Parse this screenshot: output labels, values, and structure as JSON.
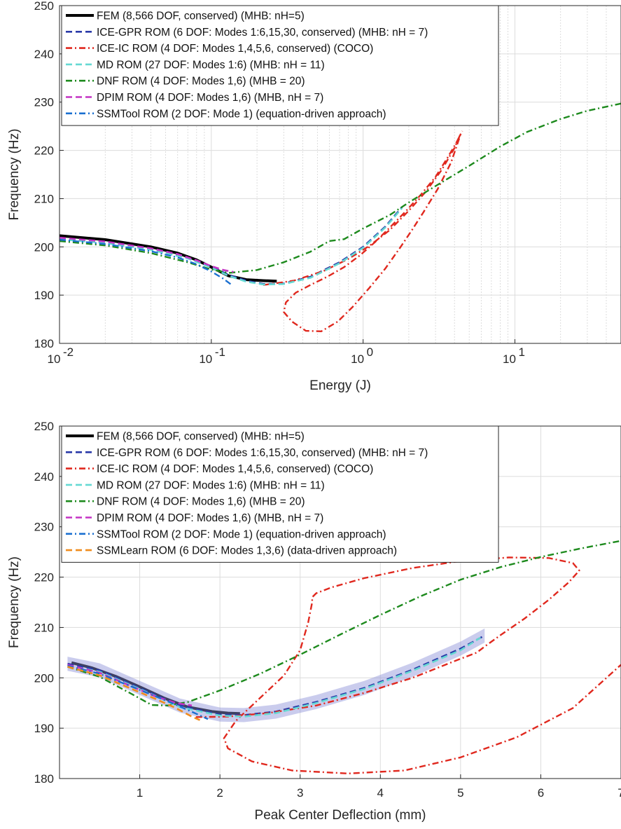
{
  "chart_data": [
    {
      "type": "line",
      "xscale": "log",
      "xlabel": "Energy (J)",
      "ylabel": "Frequency (Hz)",
      "xlim": [
        0.01,
        50
      ],
      "ylim": [
        180,
        250
      ],
      "xticks": [
        0.01,
        0.1,
        1,
        10
      ],
      "xtick_base": [
        "10",
        "10",
        "10",
        "10"
      ],
      "xtick_exp": [
        "-2",
        "-1",
        "0",
        "1"
      ],
      "yticks": [
        "180",
        "190",
        "200",
        "210",
        "220",
        "230",
        "240",
        "250"
      ],
      "grid": true,
      "legend_position": "top-left",
      "legend": [
        "FEM (8,566 DOF, conserved) (MHB: nH=5)",
        "ICE-GPR ROM (6 DOF: Modes 1:6,15,30, conserved) (MHB: nH = 7)",
        "ICE-IC ROM (4 DOF: Modes 1,4,5,6, conserved) (COCO)",
        "MD ROM (27 DOF: Modes 1:6) (MHB: nH = 11)",
        "DNF ROM (4 DOF: Modes 1,6) (MHB = 20)",
        "DPIM ROM (4 DOF:  Modes 1,6) (MHB, nH = 7)",
        "SSMTool ROM (2 DOF: Mode 1) (equation-driven approach)"
      ],
      "series": [
        {
          "name": "FEM (8,566 DOF, conserved) (MHB: nH=5)",
          "color": "#000000",
          "style": "solid",
          "x": [
            0.01,
            0.02,
            0.04,
            0.06,
            0.08,
            0.1,
            0.13,
            0.17,
            0.22,
            0.27
          ],
          "y": [
            202.3,
            201.5,
            200,
            198.7,
            197.3,
            195.8,
            194,
            193.2,
            193,
            192.9
          ]
        },
        {
          "name": "ICE-GPR ROM (6 DOF: Modes 1:6,15,30, conserved) (MHB: nH = 7)",
          "color": "#2a3aa8",
          "style": "dash",
          "x": [
            0.01,
            0.02,
            0.04,
            0.07,
            0.1,
            0.13,
            0.17,
            0.22,
            0.3,
            0.45,
            0.7,
            1.0,
            1.4,
            1.8
          ],
          "y": [
            201.8,
            201,
            199.6,
            197.8,
            195.9,
            194.2,
            193,
            192.3,
            192.4,
            193.8,
            196.8,
            200,
            204.2,
            208.2
          ]
        },
        {
          "name": "ICE-IC ROM (4 DOF: Modes 1,4,5,6, conserved) (COCO)",
          "color": "#e0281e",
          "style": "dashdot",
          "x": [
            0.22,
            0.35,
            0.55,
            0.8,
            1.1,
            1.5,
            2.0,
            2.6,
            3.3,
            4.0,
            4.4,
            4.3,
            3.8,
            3.1,
            2.5,
            2.1,
            1.75,
            1.4,
            1.1,
            0.85,
            0.68,
            0.53,
            0.42,
            0.34,
            0.3,
            0.31,
            0.36,
            0.45,
            0.58,
            0.75,
            0.95,
            1.2,
            1.5,
            1.9,
            2.4,
            3.0,
            3.6,
            4.1,
            4.5
          ],
          "y": [
            192.1,
            193,
            195,
            197.5,
            200.2,
            203.5,
            207.5,
            211.5,
            216,
            220.5,
            223.5,
            222.5,
            217.5,
            212,
            207.2,
            203.5,
            199.8,
            195.5,
            191.5,
            187.5,
            184.5,
            182.5,
            182.6,
            184.5,
            186.5,
            188.5,
            190.5,
            192.1,
            193.8,
            195.8,
            198.2,
            201,
            204,
            207.3,
            210.8,
            214.5,
            218.5,
            221.5,
            224
          ]
        },
        {
          "name": "MD ROM (27 DOF: Modes 1:6) (MHB: nH = 11)",
          "color": "#66d9d3",
          "style": "dash",
          "x": [
            0.01,
            0.02,
            0.04,
            0.07,
            0.1,
            0.13,
            0.17,
            0.22,
            0.3,
            0.45,
            0.7,
            1.0,
            1.4,
            1.8
          ],
          "y": [
            201.6,
            200.8,
            199.4,
            197.6,
            195.7,
            194,
            192.8,
            192.2,
            192.3,
            193.6,
            196.6,
            199.8,
            204,
            208
          ]
        },
        {
          "name": "DNF ROM (4 DOF: Modes 1,6) (MHB = 20)",
          "color": "#1d8a1d",
          "style": "dashdot",
          "x": [
            0.01,
            0.02,
            0.04,
            0.07,
            0.1,
            0.13,
            0.2,
            0.3,
            0.45,
            0.6,
            0.75,
            1.0,
            1.5,
            2.0,
            3.0,
            5.0,
            8.0,
            12,
            20,
            30,
            50
          ],
          "y": [
            201.2,
            200.3,
            198.7,
            196.8,
            195.3,
            194.6,
            195.2,
            196.8,
            199,
            201.2,
            201.6,
            203.8,
            206.6,
            209.2,
            212.6,
            216.8,
            220.8,
            223.8,
            226.5,
            228.2,
            229.7
          ]
        },
        {
          "name": "DPIM ROM (4 DOF:  Modes 1,6) (MHB, nH = 7)",
          "color": "#c433c4",
          "style": "dash",
          "x": [
            0.01,
            0.02,
            0.04,
            0.06,
            0.08,
            0.1,
            0.12,
            0.14
          ],
          "y": [
            201.9,
            201.1,
            199.7,
            198.5,
            197.2,
            196,
            195.2,
            194.8
          ]
        },
        {
          "name": "SSMTool ROM (2 DOF: Mode 1) (equation-driven approach)",
          "color": "#1a6fd0",
          "style": "dashdot",
          "x": [
            0.01,
            0.02,
            0.04,
            0.06,
            0.08,
            0.1,
            0.12,
            0.135
          ],
          "y": [
            201.5,
            200.6,
            199.1,
            197.8,
            196.4,
            194.9,
            193.4,
            192.2
          ]
        }
      ]
    },
    {
      "type": "line",
      "xlabel": "Peak Center Deflection (mm)",
      "ylabel": "Frequency (Hz)",
      "xlim": [
        0,
        7
      ],
      "ylim": [
        180,
        250
      ],
      "xticks": [
        "1",
        "2",
        "3",
        "4",
        "5",
        "6",
        "7"
      ],
      "yticks": [
        "180",
        "190",
        "200",
        "210",
        "220",
        "230",
        "240",
        "250"
      ],
      "grid": true,
      "legend_position": "top-left",
      "legend": [
        "FEM (8,566 DOF, conserved) (MHB: nH=5)",
        "ICE-GPR ROM (6 DOF: Modes 1:6,15,30, conserved) (MHB: nH = 7)",
        "ICE-IC ROM (4 DOF: Modes 1,4,5,6, conserved) (COCO)",
        "MD ROM (27 DOF: Modes 1:6) (MHB: nH = 11)",
        "DNF ROM (4 DOF: Modes 1,6) (MHB = 20)",
        "DPIM ROM (4 DOF:  Modes 1,6) (MHB, nH = 7)",
        "SSMTool ROM (2 DOF: Mode 1) (equation-driven approach)",
        "SSMLearn ROM (6 DOF: Modes 1,3,6) (data-driven approach)"
      ],
      "series": [
        {
          "name": "FEM (8,566 DOF, conserved) (MHB: nH=5)",
          "color": "#000000",
          "style": "solid",
          "x": [
            0.15,
            0.4,
            0.7,
            1.0,
            1.3,
            1.6,
            1.9,
            2.1,
            2.25
          ],
          "y": [
            203,
            202,
            200.3,
            198.2,
            196,
            194.2,
            193.3,
            193,
            192.9
          ]
        },
        {
          "name": "ICE-GPR ROM (6 DOF: Modes 1:6,15,30, conserved) (MHB: nH = 7)",
          "color": "#2a3aa8",
          "style": "dash",
          "x": [
            0.1,
            0.5,
            1.0,
            1.5,
            2.0,
            2.3,
            2.7,
            3.2,
            3.8,
            4.4,
            5.0,
            5.3
          ],
          "y": [
            202.8,
            201.5,
            198,
            194.5,
            192.7,
            192.6,
            193.3,
            195.2,
            198,
            201.6,
            205.8,
            208.4
          ],
          "band": 1.4
        },
        {
          "name": "ICE-IC ROM (4 DOF: Modes 1,4,5,6, conserved) (COCO)",
          "color": "#e0281e",
          "style": "dashdot",
          "x": [
            1.7,
            2.1,
            2.6,
            3.2,
            3.8,
            4.4,
            5.0,
            5.2,
            5.2,
            5.3,
            5.5,
            5.8,
            6.1,
            6.35,
            6.48,
            6.4,
            6.1,
            5.6,
            5.0,
            4.4,
            3.8,
            3.4,
            3.2,
            3.15,
            3.15,
            3.1,
            3.0,
            2.8,
            2.5,
            2.2,
            2.05,
            2.1,
            2.4,
            2.9,
            3.6,
            4.3,
            5.0,
            5.7,
            6.4,
            7.0
          ],
          "y": [
            192.2,
            192.3,
            193,
            194.5,
            197,
            200,
            203.8,
            205,
            205,
            206.2,
            208.5,
            211.8,
            215.5,
            219,
            221.3,
            222.8,
            223.8,
            223.9,
            223.2,
            221.8,
            219.8,
            218,
            216.8,
            216,
            215,
            211,
            205.5,
            200.5,
            196,
            191.5,
            188,
            186,
            183.4,
            181.6,
            181,
            181.6,
            184.2,
            188.2,
            194,
            202.6
          ]
        },
        {
          "name": "MD ROM (27 DOF: Modes 1:6) (MHB: nH = 11)",
          "color": "#66d9d3",
          "style": "dash",
          "x": [
            0.1,
            0.5,
            1.0,
            1.5,
            2.0,
            2.3,
            2.7,
            3.2,
            3.8,
            4.4,
            5.0,
            5.25
          ],
          "y": [
            202.5,
            201.2,
            197.8,
            194.2,
            192.5,
            192.3,
            193,
            195,
            197.8,
            201.4,
            205.5,
            208
          ]
        },
        {
          "name": "DNF ROM (4 DOF: Modes 1,6) (MHB = 20)",
          "color": "#1d8a1d",
          "style": "dashdot",
          "x": [
            0.1,
            0.5,
            0.9,
            1.15,
            1.35,
            1.6,
            2.0,
            2.5,
            3.0,
            3.5,
            4.0,
            4.5,
            5.0,
            5.5,
            6.0,
            6.5,
            7.0
          ],
          "y": [
            202.2,
            200.2,
            196.8,
            194.6,
            194.5,
            195.2,
            197.5,
            200.8,
            204.6,
            208.6,
            212.5,
            216.2,
            219.5,
            222,
            224,
            225.7,
            227.2
          ]
        },
        {
          "name": "DPIM ROM (4 DOF:  Modes 1,6) (MHB, nH = 7)",
          "color": "#c433c4",
          "style": "dash",
          "x": [
            0.1,
            0.5,
            0.9,
            1.2,
            1.45,
            1.65
          ],
          "y": [
            202.6,
            201,
            198.3,
            196.3,
            195,
            194.5
          ]
        },
        {
          "name": "SSMTool ROM (2 DOF: Mode 1) (equation-driven approach)",
          "color": "#1a6fd0",
          "style": "dashdot",
          "x": [
            0.1,
            0.5,
            1.0,
            1.4,
            1.7,
            1.85
          ],
          "y": [
            202.4,
            200.8,
            197.6,
            195,
            192.9,
            191.8
          ]
        },
        {
          "name": "SSMLearn ROM (6 DOF: Modes 1,3,6) (data-driven approach)",
          "color": "#f08c1e",
          "style": "dash",
          "x": [
            0.1,
            0.5,
            0.9,
            1.2,
            1.45,
            1.65,
            1.75
          ],
          "y": [
            202.2,
            200.5,
            197.8,
            195.8,
            194,
            192.3,
            191.6
          ]
        }
      ]
    }
  ]
}
